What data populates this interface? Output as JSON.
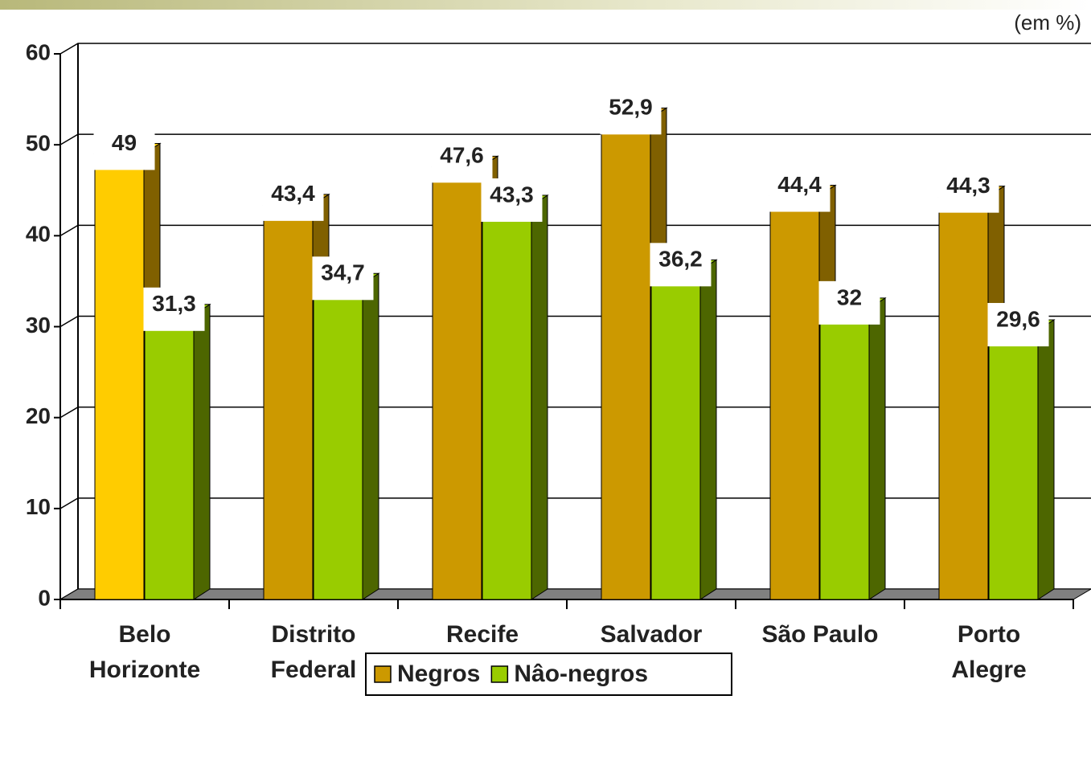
{
  "chart_data": {
    "type": "bar3d",
    "unit_label": "(em %)",
    "categories": [
      "Belo\nHorizonte",
      "Distrito\nFederal",
      "Recife",
      "Salvador",
      "São Paulo",
      "Porto\nAlegre"
    ],
    "series": [
      {
        "name": "Negros",
        "color": "#cc9900",
        "side_color": "#806000",
        "point_colors": [
          "#ffcc00",
          null,
          null,
          null,
          null,
          null
        ],
        "values": [
          49,
          43.4,
          47.6,
          52.9,
          44.4,
          44.3
        ],
        "value_labels": [
          "49",
          "43,4",
          "47,6",
          "52,9",
          "44,4",
          "44,3"
        ]
      },
      {
        "name": "Nâo-negros",
        "color": "#99cc00",
        "side_color": "#4d6600",
        "values": [
          31.3,
          34.7,
          43.3,
          36.2,
          32,
          29.6
        ],
        "value_labels": [
          "31,3",
          "34,7",
          "43,3",
          "36,2",
          "32",
          "29,6"
        ]
      }
    ],
    "ylim": [
      0,
      60
    ],
    "yticks": [
      0,
      10,
      20,
      30,
      40,
      50,
      60
    ],
    "grid": true,
    "legend": "bottom"
  }
}
